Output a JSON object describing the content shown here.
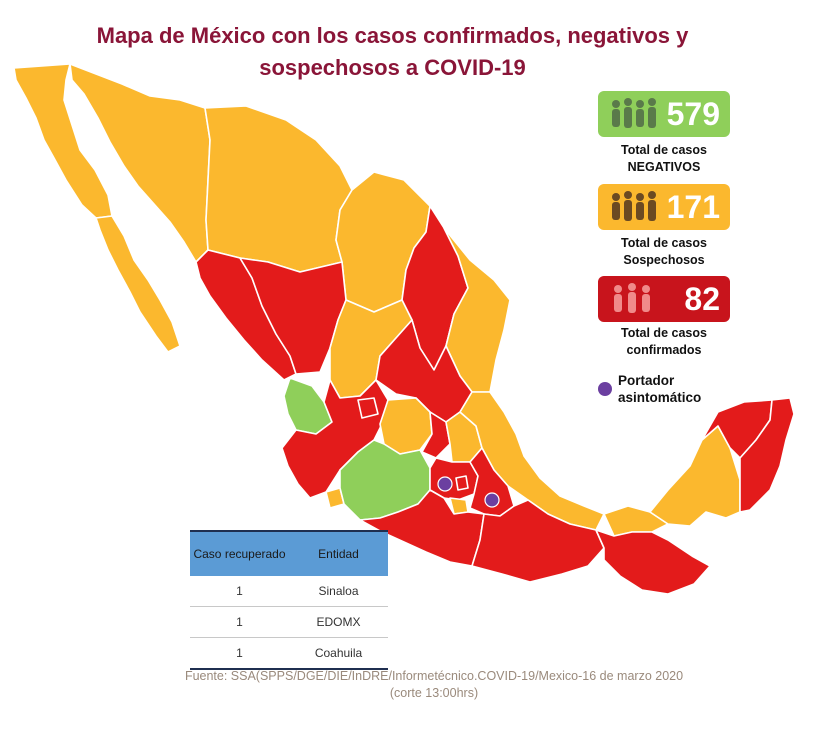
{
  "title": {
    "line1": "Mapa de México con los casos confirmados, negativos y",
    "line2": "sospechosos a COVID-19"
  },
  "colors": {
    "negative": "#8fcf5a",
    "suspected": "#fbb82e",
    "confirmed": "#e31b1b",
    "asymptomatic": "#6b3fa0",
    "title": "#8a1538",
    "table_header": "#5b9bd5"
  },
  "stats": {
    "negative": {
      "icon": "people-group-icon",
      "value": "579",
      "label_line1": "Total de casos",
      "label_line2": "NEGATIVOS"
    },
    "suspected": {
      "icon": "people-group-icon",
      "value": "171",
      "label_line1": "Total de casos",
      "label_line2": "Sospechosos"
    },
    "confirmed": {
      "icon": "people-group-icon",
      "value": "82",
      "label_line1": "Total de casos",
      "label_line2": "confirmados"
    }
  },
  "legend": {
    "asymptomatic_line1": "Portador",
    "asymptomatic_line2": "asintomático"
  },
  "recovered_table": {
    "headers": [
      "Caso recuperado",
      "Entidad"
    ],
    "rows": [
      [
        "1",
        "Sinaloa"
      ],
      [
        "1",
        "EDOMX"
      ],
      [
        "1",
        "Coahuila"
      ]
    ]
  },
  "source": {
    "line1": "Fuente: SSA(SPPS/DGE/DIE/InDRE/Informetécnico.COVID-19/Mexico-16 de marzo 2020",
    "line2": "(corte 13:00hrs)"
  }
}
